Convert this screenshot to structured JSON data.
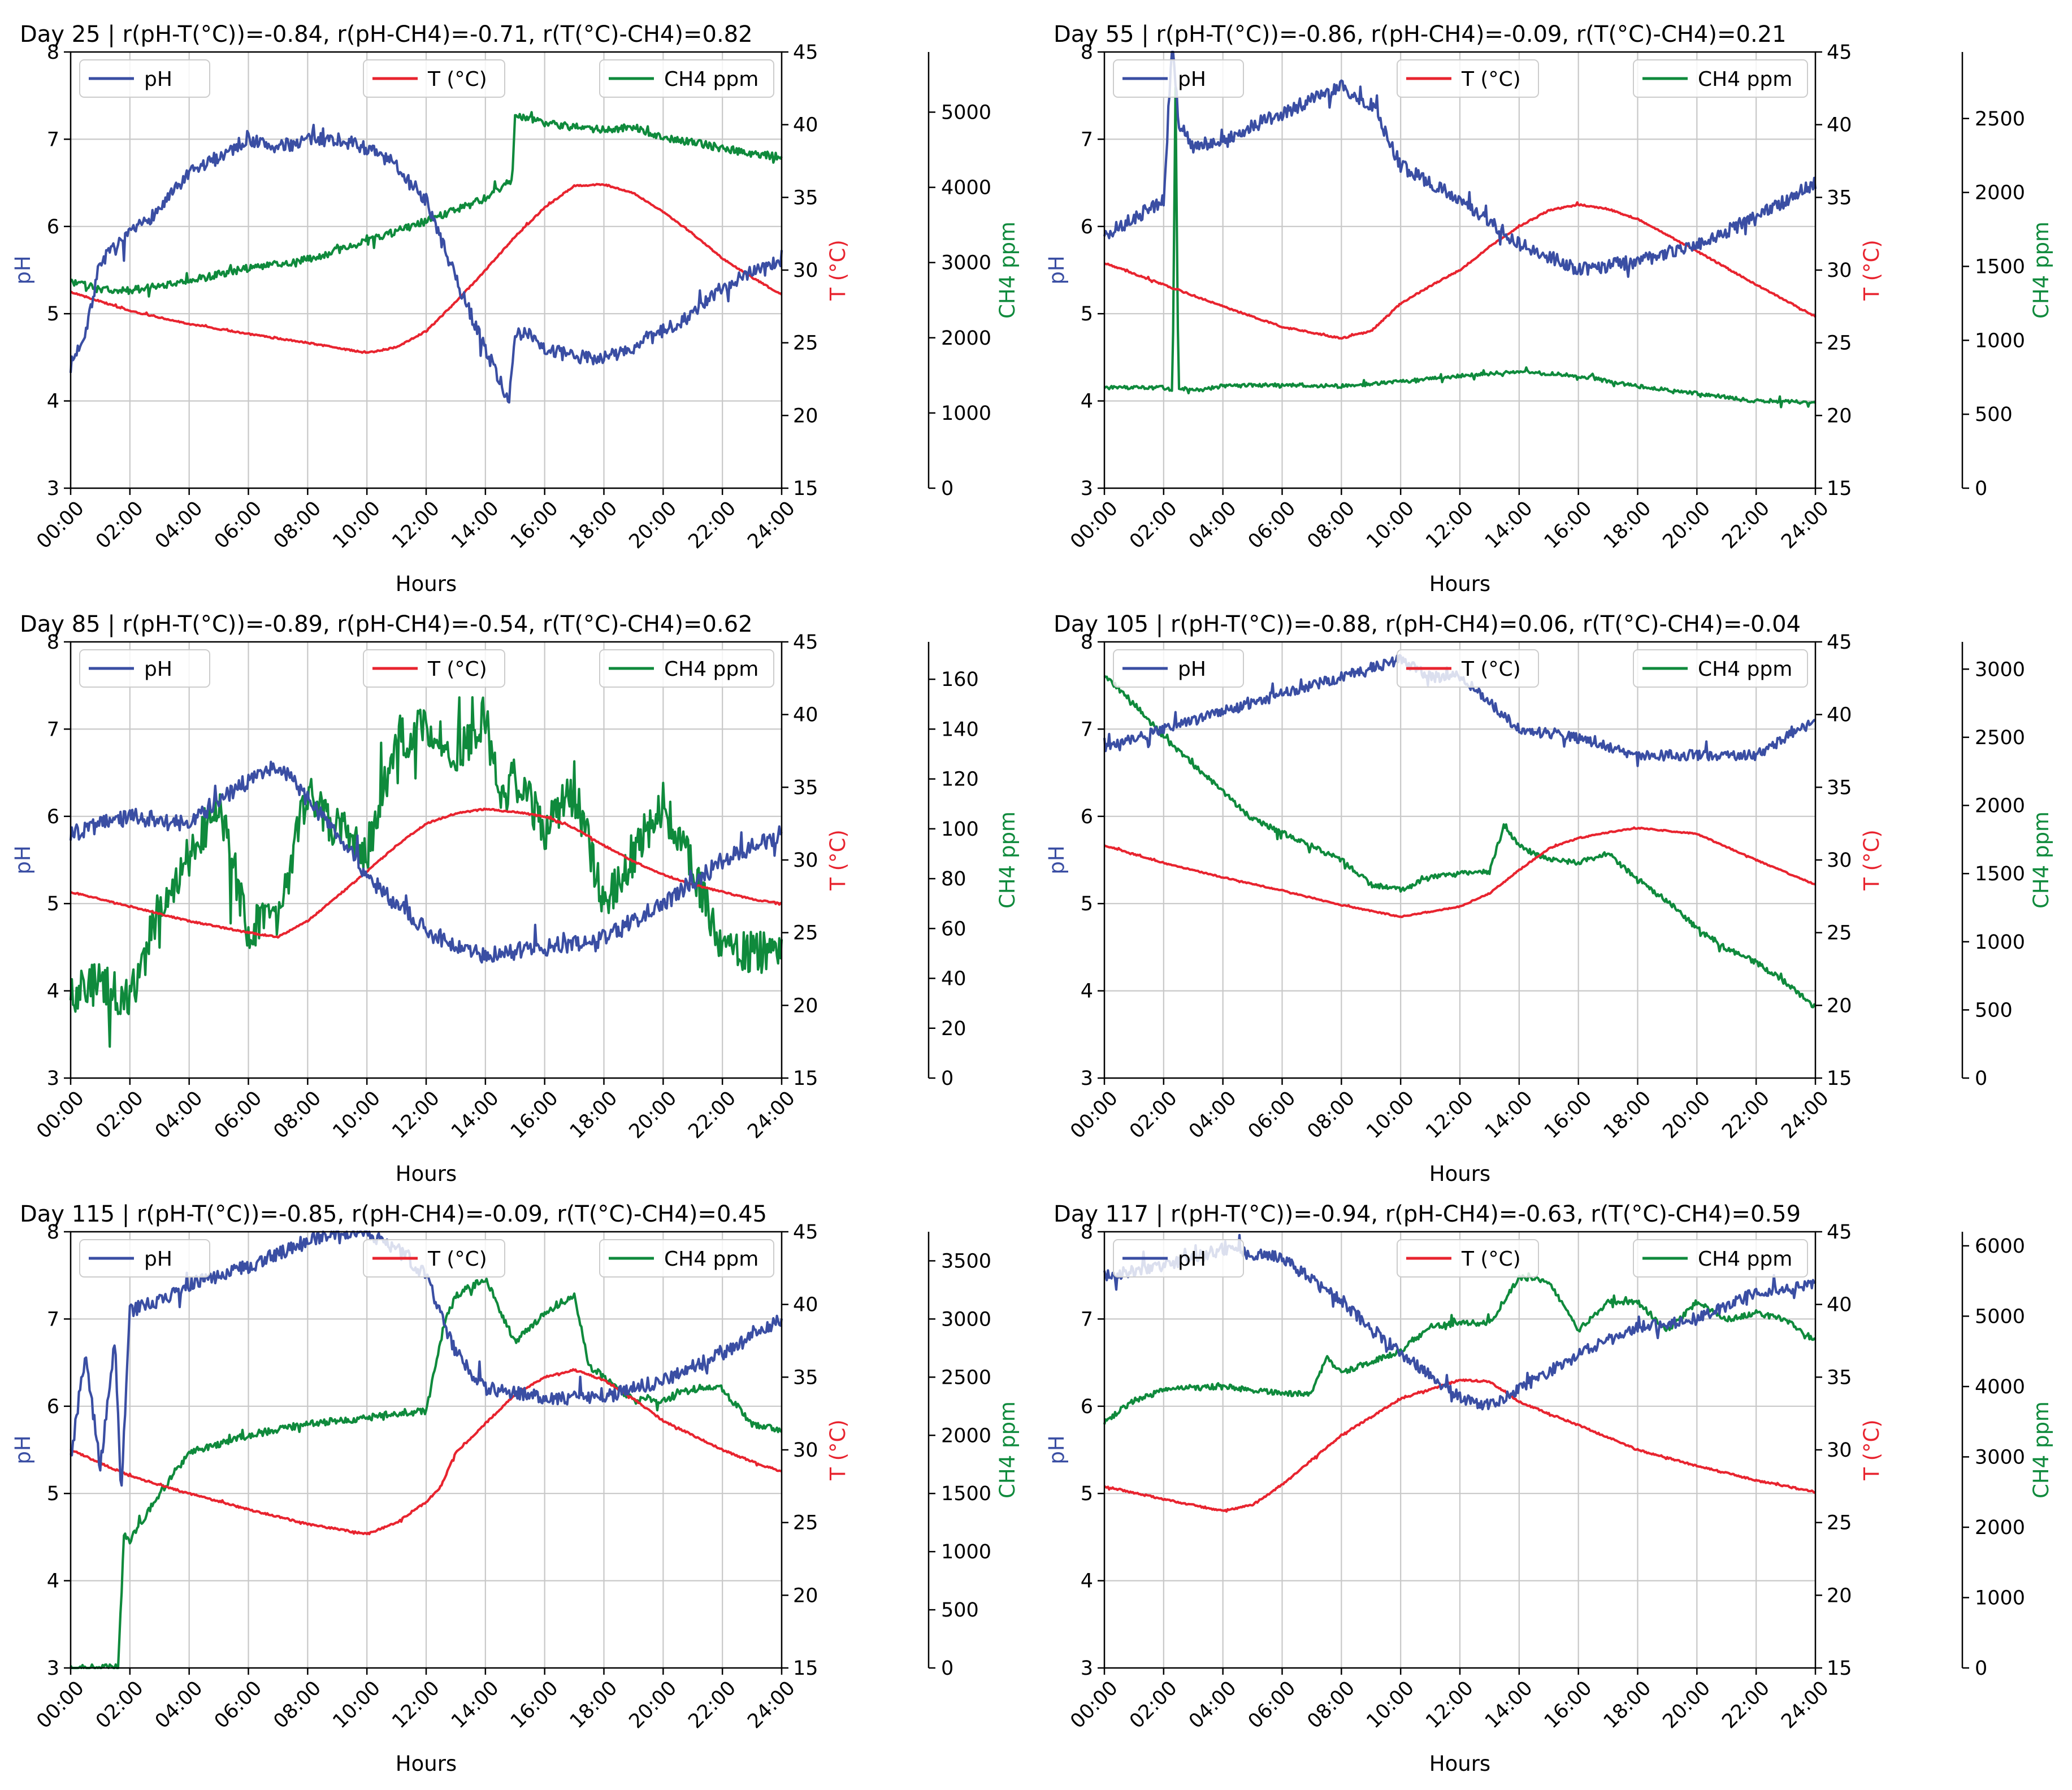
{
  "colors": {
    "ph": "#3a4ea3",
    "temp": "#e8242f",
    "ch4": "#0f8a3c",
    "grid": "#c8c8c8"
  },
  "common": {
    "xlabel": "Hours",
    "ph_label": "pH",
    "temp_label": "T (°C)",
    "ch4_label": "CH4 ppm",
    "x_ticks": [
      "00:00",
      "02:00",
      "04:00",
      "06:00",
      "08:00",
      "10:00",
      "12:00",
      "14:00",
      "16:00",
      "18:00",
      "20:00",
      "22:00",
      "24:00"
    ],
    "ph_ticks": [
      "3",
      "4",
      "5",
      "6",
      "7",
      "8"
    ],
    "temp_ticks": [
      "15",
      "20",
      "25",
      "30",
      "35",
      "40",
      "45"
    ],
    "legend": [
      "pH",
      "T (°C)",
      "CH4 ppm"
    ]
  },
  "chart_data": [
    {
      "type": "line",
      "title": "Day 25 | r(pH-T(°C))=-0.84, r(pH-CH4)=-0.71, r(T(°C)-CH4)=0.82",
      "xlabel": "Hours",
      "x_range_hours": [
        0,
        24
      ],
      "ph_range": [
        3,
        8
      ],
      "temp_range": [
        15,
        45
      ],
      "ch4_range": [
        0,
        5800
      ],
      "ch4_ticks": [
        "0",
        "1000",
        "2000",
        "3000",
        "4000",
        "5000"
      ],
      "series": [
        {
          "name": "pH",
          "noise": 0.08,
          "x": [
            0,
            0.5,
            1,
            2,
            3,
            4,
            5,
            6,
            7,
            8,
            9,
            10,
            11,
            12,
            13,
            14,
            14.8,
            15,
            15.5,
            16,
            17,
            18,
            19,
            20,
            21,
            22,
            23,
            24
          ],
          "values": [
            4.4,
            4.8,
            5.6,
            5.9,
            6.2,
            6.6,
            6.8,
            7.0,
            6.9,
            7.0,
            7.0,
            6.9,
            6.7,
            6.3,
            5.4,
            4.6,
            4.0,
            4.7,
            4.8,
            4.6,
            4.5,
            4.5,
            4.6,
            4.8,
            5.0,
            5.3,
            5.5,
            5.6
          ]
        },
        {
          "name": "T (°C)",
          "noise": 0.05,
          "x": [
            0,
            2,
            4,
            6,
            8,
            10,
            11,
            12,
            13,
            14,
            15,
            16,
            17,
            18,
            19,
            20,
            21,
            22,
            23,
            24
          ],
          "values": [
            28.5,
            27.2,
            26.3,
            25.6,
            25.0,
            24.3,
            24.7,
            25.8,
            27.8,
            30.0,
            32.3,
            34.3,
            35.8,
            35.9,
            35.3,
            34.0,
            32.5,
            30.8,
            29.5,
            28.3
          ]
        },
        {
          "name": "CH4 ppm",
          "noise": 50,
          "x": [
            0,
            1,
            2,
            4,
            6,
            8,
            10,
            12,
            14,
            14.9,
            15,
            16,
            17,
            18,
            19,
            20,
            21,
            22,
            23,
            24
          ],
          "values": [
            2750,
            2640,
            2630,
            2760,
            2930,
            3040,
            3280,
            3550,
            3850,
            4100,
            4950,
            4850,
            4800,
            4760,
            4800,
            4650,
            4600,
            4520,
            4450,
            4400
          ]
        }
      ]
    },
    {
      "type": "line",
      "title": "Day 55 | r(pH-T(°C))=-0.86, r(pH-CH4)=-0.09, r(T(°C)-CH4)=0.21",
      "xlabel": "Hours",
      "x_range_hours": [
        0,
        24
      ],
      "ph_range": [
        3,
        8
      ],
      "temp_range": [
        15,
        45
      ],
      "ch4_range": [
        0,
        2950
      ],
      "ch4_ticks": [
        "0",
        "500",
        "1000",
        "1500",
        "2000",
        "2500"
      ],
      "series": [
        {
          "name": "pH",
          "noise": 0.08,
          "x": [
            0,
            1,
            2,
            2.3,
            2.5,
            3,
            4,
            6,
            8,
            9,
            10,
            11,
            12,
            14,
            16,
            18,
            20,
            22,
            23,
            23.5,
            24
          ],
          "values": [
            5.9,
            6.1,
            6.3,
            8.1,
            7.2,
            6.9,
            7.0,
            7.3,
            7.6,
            7.4,
            6.7,
            6.5,
            6.3,
            5.8,
            5.5,
            5.6,
            5.8,
            6.1,
            6.3,
            6.4,
            6.5
          ]
        },
        {
          "name": "T (°C)",
          "noise": 0.05,
          "x": [
            0,
            2,
            4,
            6,
            8,
            9,
            10,
            11,
            12,
            13,
            14,
            15,
            16,
            17,
            18,
            20,
            22,
            24
          ],
          "values": [
            30.5,
            29.0,
            27.5,
            26.1,
            25.3,
            25.8,
            27.7,
            28.9,
            30.0,
            31.6,
            33.0,
            34.1,
            34.5,
            34.2,
            33.5,
            31.3,
            29.0,
            26.8
          ]
        },
        {
          "name": "CH4 ppm",
          "noise": 12,
          "x": [
            0,
            2,
            2.3,
            2.4,
            2.5,
            3,
            4,
            6,
            8,
            10,
            12,
            14,
            16,
            18,
            20,
            22,
            24
          ],
          "values": [
            680,
            680,
            660,
            2700,
            680,
            660,
            690,
            700,
            690,
            720,
            760,
            790,
            760,
            690,
            640,
            590,
            580
          ]
        }
      ]
    },
    {
      "type": "line",
      "title": "Day 85 | r(pH-T(°C))=-0.89, r(pH-CH4)=-0.54, r(T(°C)-CH4)=0.62",
      "xlabel": "Hours",
      "x_range_hours": [
        0,
        24
      ],
      "ph_range": [
        3,
        8
      ],
      "temp_range": [
        15,
        45
      ],
      "ch4_range": [
        0,
        175
      ],
      "ch4_ticks": [
        "0",
        "20",
        "40",
        "60",
        "80",
        "100",
        "120",
        "140",
        "160"
      ],
      "series": [
        {
          "name": "pH",
          "noise": 0.1,
          "x": [
            0,
            2,
            4,
            5,
            6,
            7,
            8,
            9,
            10,
            11,
            12,
            13,
            14,
            16,
            18,
            20,
            22,
            24
          ],
          "values": [
            5.8,
            6.0,
            5.9,
            6.2,
            6.4,
            6.6,
            6.2,
            5.8,
            5.3,
            5.0,
            4.7,
            4.5,
            4.4,
            4.5,
            4.6,
            5.0,
            5.5,
            5.8
          ]
        },
        {
          "name": "T (°C)",
          "noise": 0.05,
          "x": [
            0,
            2,
            4,
            6,
            7,
            8,
            9,
            10,
            11,
            12,
            13,
            14,
            15,
            16,
            17,
            18,
            19,
            20,
            21,
            22,
            23,
            24
          ],
          "values": [
            27.8,
            26.8,
            25.8,
            25.0,
            24.7,
            25.8,
            27.5,
            29.2,
            31.0,
            32.5,
            33.2,
            33.5,
            33.3,
            33.0,
            32.2,
            31.0,
            29.9,
            29.0,
            28.3,
            27.8,
            27.3,
            27.0
          ]
        },
        {
          "name": "CH4 ppm",
          "noise": 9,
          "x": [
            0,
            1,
            2,
            3,
            4,
            5,
            6,
            7,
            8,
            9,
            10,
            11,
            12,
            13,
            14,
            14.5,
            15,
            16,
            17,
            18,
            19,
            20,
            21,
            22,
            23,
            24
          ],
          "values": [
            35,
            38,
            30,
            68,
            90,
            110,
            60,
            65,
            115,
            100,
            90,
            135,
            140,
            130,
            145,
            110,
            120,
            100,
            115,
            70,
            90,
            110,
            85,
            50,
            50,
            50
          ]
        }
      ]
    },
    {
      "type": "line",
      "title": "Day 105 | r(pH-T(°C))=-0.88, r(pH-CH4)=0.06, r(T(°C)-CH4)=-0.04",
      "xlabel": "Hours",
      "x_range_hours": [
        0,
        24
      ],
      "ph_range": [
        3,
        8
      ],
      "temp_range": [
        15,
        45
      ],
      "ch4_range": [
        0,
        3200
      ],
      "ch4_ticks": [
        "0",
        "500",
        "1000",
        "1500",
        "2000",
        "2500",
        "3000"
      ],
      "series": [
        {
          "name": "pH",
          "noise": 0.06,
          "x": [
            0,
            1,
            2,
            4,
            6,
            8,
            10,
            11,
            12,
            13,
            14,
            16,
            18,
            20,
            22,
            23,
            24
          ],
          "values": [
            6.8,
            6.9,
            7.0,
            7.2,
            7.4,
            7.6,
            7.8,
            7.6,
            7.6,
            7.3,
            7.0,
            6.9,
            6.7,
            6.7,
            6.7,
            6.9,
            7.1
          ]
        },
        {
          "name": "T (°C)",
          "noise": 0.04,
          "x": [
            0,
            2,
            4,
            6,
            8,
            10,
            12,
            13,
            14,
            15,
            16,
            17,
            18,
            20,
            22,
            24
          ],
          "values": [
            31.0,
            29.8,
            28.8,
            27.9,
            26.9,
            26.1,
            26.8,
            27.7,
            29.3,
            30.8,
            31.5,
            31.9,
            32.2,
            31.8,
            30.0,
            28.3
          ]
        },
        {
          "name": "CH4 ppm",
          "noise": 20,
          "x": [
            0,
            1,
            2,
            3,
            4,
            5,
            6,
            7,
            8,
            9,
            10,
            11,
            12,
            13,
            13.5,
            14,
            15,
            16,
            17,
            18,
            19,
            20,
            21,
            22,
            23,
            24
          ],
          "values": [
            2950,
            2750,
            2500,
            2300,
            2100,
            1900,
            1800,
            1700,
            1600,
            1420,
            1380,
            1470,
            1500,
            1520,
            1860,
            1700,
            1600,
            1580,
            1650,
            1450,
            1300,
            1100,
            950,
            850,
            700,
            520
          ]
        }
      ]
    },
    {
      "type": "line",
      "title": "Day 115 | r(pH-T(°C))=-0.85, r(pH-CH4)=-0.09, r(T(°C)-CH4)=0.45",
      "xlabel": "Hours",
      "x_range_hours": [
        0,
        24
      ],
      "ph_range": [
        3,
        8
      ],
      "temp_range": [
        15,
        45
      ],
      "ch4_range": [
        0,
        3750
      ],
      "ch4_ticks": [
        "0",
        "500",
        "1000",
        "1500",
        "2000",
        "2500",
        "3000",
        "3500"
      ],
      "series": [
        {
          "name": "pH",
          "noise": 0.08,
          "x": [
            0,
            0.5,
            1,
            1.5,
            1.7,
            2,
            3,
            4,
            6,
            8,
            9,
            10,
            11,
            12,
            13,
            14,
            16,
            18,
            20,
            22,
            24
          ],
          "values": [
            5.4,
            6.6,
            5.3,
            6.8,
            5.0,
            7.1,
            7.2,
            7.4,
            7.6,
            7.9,
            8.0,
            8.0,
            7.8,
            7.5,
            6.6,
            6.2,
            6.1,
            6.1,
            6.3,
            6.6,
            7.0
          ]
        },
        {
          "name": "T (°C)",
          "noise": 0.06,
          "x": [
            0,
            2,
            4,
            6,
            8,
            10,
            11,
            12,
            12.5,
            13,
            14,
            15,
            16,
            17,
            18,
            19,
            20,
            21,
            22,
            23,
            24
          ],
          "values": [
            30.0,
            28.2,
            27.0,
            25.9,
            24.9,
            24.2,
            25.0,
            26.4,
            27.5,
            29.8,
            31.8,
            33.8,
            35.0,
            35.5,
            34.8,
            33.5,
            32.0,
            31.0,
            30.0,
            29.2,
            28.5
          ]
        },
        {
          "name": "CH4 ppm",
          "noise": 30,
          "x": [
            0,
            1.6,
            1.8,
            2,
            3,
            4,
            6,
            8,
            10,
            11,
            12,
            12.6,
            13,
            14,
            15,
            16,
            17,
            17.5,
            18,
            19,
            20,
            21,
            22,
            23,
            24
          ],
          "values": [
            0,
            0,
            1150,
            1100,
            1500,
            1850,
            2000,
            2100,
            2150,
            2200,
            2200,
            2950,
            3200,
            3350,
            2800,
            3050,
            3200,
            2600,
            2500,
            2300,
            2300,
            2400,
            2400,
            2100,
            2050
          ]
        }
      ]
    },
    {
      "type": "line",
      "title": "Day 117 | r(pH-T(°C))=-0.94, r(pH-CH4)=-0.63, r(T(°C)-CH4)=0.59",
      "xlabel": "Hours",
      "x_range_hours": [
        0,
        24
      ],
      "ph_range": [
        3,
        8
      ],
      "temp_range": [
        15,
        45
      ],
      "ch4_range": [
        0,
        6200
      ],
      "ch4_ticks": [
        "0",
        "1000",
        "2000",
        "3000",
        "4000",
        "5000",
        "6000"
      ],
      "series": [
        {
          "name": "pH",
          "noise": 0.07,
          "x": [
            0,
            2,
            4,
            6,
            8,
            10,
            12,
            13,
            14,
            16,
            18,
            20,
            22,
            24
          ],
          "values": [
            7.5,
            7.6,
            7.8,
            7.7,
            7.2,
            6.6,
            6.1,
            6.0,
            6.2,
            6.6,
            6.9,
            7.0,
            7.3,
            7.4
          ]
        },
        {
          "name": "T (°C)",
          "noise": 0.06,
          "x": [
            0,
            2,
            4,
            5,
            6,
            8,
            10,
            12,
            13,
            14,
            16,
            18,
            20,
            22,
            24
          ],
          "values": [
            27.5,
            26.6,
            25.8,
            26.2,
            27.6,
            31.0,
            33.5,
            34.8,
            34.7,
            33.3,
            31.7,
            30.0,
            28.9,
            27.9,
            27.1
          ]
        },
        {
          "name": "CH4 ppm",
          "noise": 40,
          "x": [
            0,
            1,
            2,
            4,
            6,
            7,
            7.5,
            8,
            10,
            11,
            12,
            13,
            14,
            15,
            16,
            17,
            18,
            19,
            20,
            21,
            22,
            23,
            24
          ],
          "values": [
            3500,
            3800,
            3950,
            4000,
            3900,
            3900,
            4400,
            4200,
            4500,
            4850,
            4900,
            4900,
            5550,
            5500,
            4800,
            5200,
            5200,
            4800,
            5200,
            4950,
            5050,
            4950,
            4650
          ]
        }
      ]
    }
  ]
}
